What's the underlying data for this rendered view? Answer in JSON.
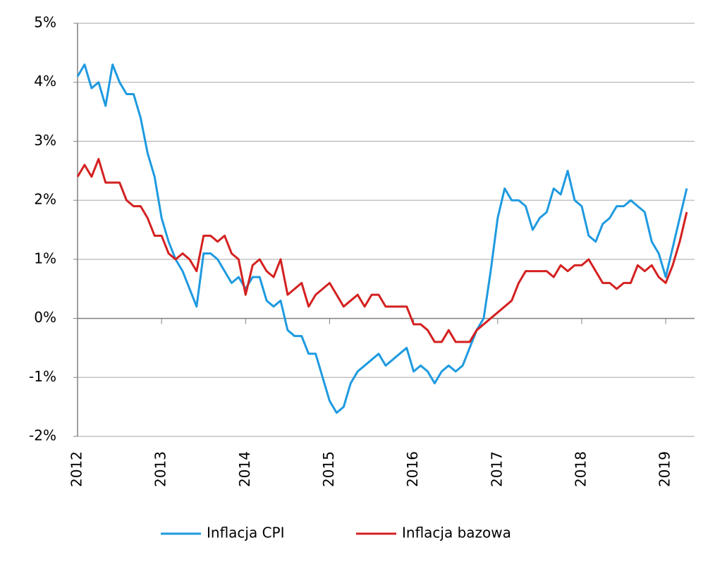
{
  "chart_data": {
    "type": "line",
    "categories": [
      "2012",
      null,
      null,
      null,
      null,
      null,
      null,
      null,
      null,
      null,
      null,
      null,
      "2013",
      null,
      null,
      null,
      null,
      null,
      null,
      null,
      null,
      null,
      null,
      null,
      "2014",
      null,
      null,
      null,
      null,
      null,
      null,
      null,
      null,
      null,
      null,
      null,
      "2015",
      null,
      null,
      null,
      null,
      null,
      null,
      null,
      null,
      null,
      null,
      null,
      "2016",
      null,
      null,
      null,
      null,
      null,
      null,
      null,
      null,
      null,
      null,
      null,
      "2017",
      null,
      null,
      null,
      null,
      null,
      null,
      null,
      null,
      null,
      null,
      null,
      "2018",
      null,
      null,
      null,
      null,
      null,
      null,
      null,
      null,
      null,
      null,
      null,
      "2019",
      null,
      null,
      null
    ],
    "series": [
      {
        "name": "Inflacja CPI",
        "color": "#1e9ae0",
        "values": [
          4.1,
          4.3,
          3.9,
          4.0,
          3.6,
          4.3,
          4.0,
          3.8,
          3.8,
          3.4,
          2.8,
          2.4,
          1.7,
          1.3,
          1.0,
          0.8,
          0.5,
          0.2,
          1.1,
          1.1,
          1.0,
          0.8,
          0.6,
          0.7,
          0.5,
          0.7,
          0.7,
          0.3,
          0.2,
          0.3,
          -0.2,
          -0.3,
          -0.3,
          -0.6,
          -0.6,
          -1.0,
          -1.4,
          -1.6,
          -1.5,
          -1.1,
          -0.9,
          -0.8,
          -0.7,
          -0.6,
          -0.8,
          -0.7,
          -0.6,
          -0.5,
          -0.9,
          -0.8,
          -0.9,
          -1.1,
          -0.9,
          -0.8,
          -0.9,
          -0.8,
          -0.5,
          -0.2,
          0.0,
          0.8,
          1.7,
          2.2,
          2.0,
          2.0,
          1.9,
          1.5,
          1.7,
          1.8,
          2.2,
          2.1,
          2.5,
          2.0,
          1.9,
          1.4,
          1.3,
          1.6,
          1.7,
          1.9,
          1.9,
          2.0,
          1.9,
          1.8,
          1.3,
          1.1,
          0.7,
          1.2,
          1.7,
          2.2
        ]
      },
      {
        "name": "Inflacja bazowa",
        "color": "#d42020",
        "values": [
          2.4,
          2.6,
          2.4,
          2.7,
          2.3,
          2.3,
          2.3,
          2.0,
          1.9,
          1.9,
          1.7,
          1.4,
          1.4,
          1.1,
          1.0,
          1.1,
          1.0,
          0.8,
          1.4,
          1.4,
          1.3,
          1.4,
          1.1,
          1.0,
          0.4,
          0.9,
          1.0,
          0.8,
          0.7,
          1.0,
          0.4,
          0.5,
          0.6,
          0.2,
          0.4,
          0.5,
          0.6,
          0.4,
          0.2,
          0.3,
          0.4,
          0.2,
          0.4,
          0.4,
          0.2,
          0.2,
          0.2,
          0.2,
          -0.1,
          -0.1,
          -0.2,
          -0.4,
          -0.4,
          -0.2,
          -0.4,
          -0.4,
          -0.4,
          -0.2,
          -0.1,
          0.0,
          0.1,
          0.2,
          0.3,
          0.6,
          0.8,
          0.8,
          0.8,
          0.8,
          0.7,
          0.9,
          0.8,
          0.9,
          0.9,
          1.0,
          0.8,
          0.6,
          0.6,
          0.5,
          0.6,
          0.6,
          0.9,
          0.8,
          0.9,
          0.7,
          0.6,
          0.9,
          1.3,
          1.8
        ]
      }
    ],
    "ylim": [
      -2,
      5
    ],
    "yticks": [
      {
        "value": -2,
        "label": "-2%"
      },
      {
        "value": -1,
        "label": "-1%"
      },
      {
        "value": 0,
        "label": "0%"
      },
      {
        "value": 1,
        "label": "1%"
      },
      {
        "value": 2,
        "label": "2%"
      },
      {
        "value": 3,
        "label": "3%"
      },
      {
        "value": 4,
        "label": "4%"
      },
      {
        "value": 5,
        "label": "5%"
      }
    ],
    "grid": true,
    "legend": "bottom"
  }
}
